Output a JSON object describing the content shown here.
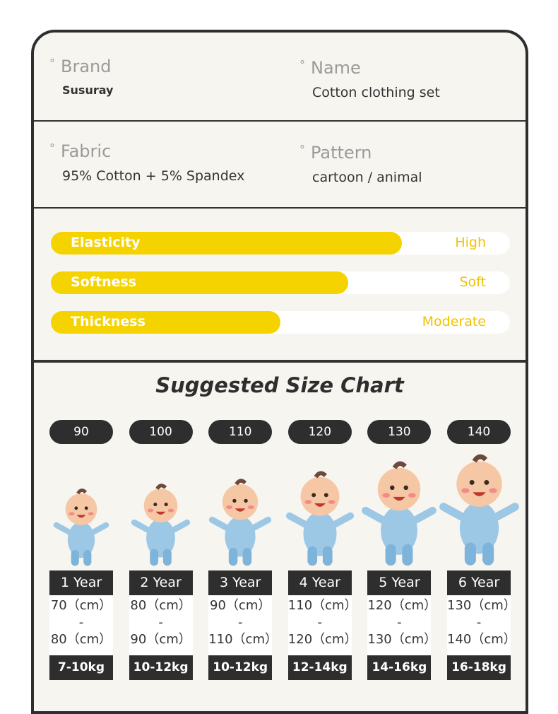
{
  "info": [
    {
      "label": "Brand",
      "value": "Susuray"
    },
    {
      "label": "Name",
      "value": "Cotton clothing set"
    },
    {
      "label": "Fabric",
      "value": "95% Cotton + 5% Spandex"
    },
    {
      "label": "Pattern",
      "value": "cartoon / animal"
    }
  ],
  "attributes": [
    {
      "name": "Elasticity",
      "level": "High"
    },
    {
      "name": "Softness",
      "level": "Soft"
    },
    {
      "name": "Thickness",
      "level": "Moderate"
    }
  ],
  "size_chart": {
    "title": "Suggested Size Chart",
    "sizes": [
      {
        "size": "90",
        "age": "1 Year",
        "height_min": "70（cm）",
        "separator": "-",
        "height_max": "80（cm）",
        "weight": "7-10kg"
      },
      {
        "size": "100",
        "age": "2 Year",
        "height_min": "80（cm）",
        "separator": "-",
        "height_max": "90（cm）",
        "weight": "10-12kg"
      },
      {
        "size": "110",
        "age": "3 Year",
        "height_min": "90（cm）",
        "separator": "-",
        "height_max": "110（cm）",
        "weight": "10-12kg"
      },
      {
        "size": "120",
        "age": "4 Year",
        "height_min": "110（cm）",
        "separator": "-",
        "height_max": "120（cm）",
        "weight": "12-14kg"
      },
      {
        "size": "130",
        "age": "5 Year",
        "height_min": "120（cm）",
        "separator": "-",
        "height_max": "130（cm）",
        "weight": "14-16kg"
      },
      {
        "size": "140",
        "age": "6 Year",
        "height_min": "130（cm）",
        "separator": "-",
        "height_max": "140（cm）",
        "weight": "16-18kg"
      }
    ]
  }
}
